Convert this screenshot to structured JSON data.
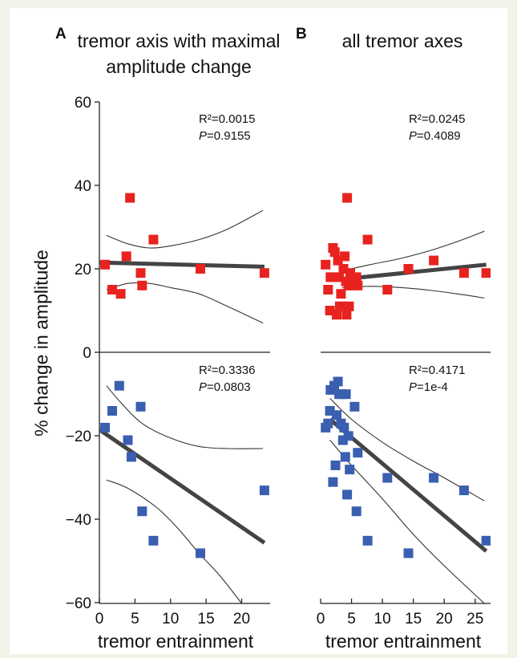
{
  "figure": {
    "ylabel": "% change in amplitude",
    "xlabel": "tremor entrainment",
    "y_ticks": [
      "60",
      "40",
      "20",
      "0",
      "−20",
      "−40",
      "−60"
    ],
    "marker_colors": {
      "increase": "#e8231f",
      "decrease": "#3a5fb0"
    },
    "line_colors": {
      "fit": "#444444",
      "ci": "#333333"
    }
  },
  "panels": [
    {
      "letter": "A",
      "title": "tremor axis with maximal amplitude change",
      "x_ticks": [
        "0",
        "5",
        "10",
        "15",
        "20"
      ],
      "top_stats": {
        "r2": "R²=0.0015",
        "p_italic": "P",
        "p_value": "=0.9155"
      },
      "bottom_stats": {
        "r2": "R²=0.3336",
        "p_italic": "P",
        "p_value": "=0.0803"
      }
    },
    {
      "letter": "B",
      "title": "all tremor axes",
      "x_ticks": [
        "0",
        "5",
        "10",
        "15",
        "20",
        "25"
      ],
      "top_stats": {
        "r2": "R²=0.0245",
        "p_italic": "P",
        "p_value": "=0.4089"
      },
      "bottom_stats": {
        "r2": "R²=0.4171",
        "p_italic": "P",
        "p_value": "=1e-4"
      }
    }
  ],
  "chart_data": [
    {
      "type": "scatter",
      "panel": "A-top",
      "xlim": [
        0,
        24
      ],
      "ylim": [
        0,
        60
      ],
      "points": [
        [
          0.8,
          21
        ],
        [
          1.8,
          15
        ],
        [
          3.0,
          14
        ],
        [
          3.8,
          23
        ],
        [
          4.3,
          37
        ],
        [
          5.8,
          19
        ],
        [
          6.0,
          16
        ],
        [
          7.6,
          27
        ],
        [
          14.2,
          20
        ],
        [
          23.2,
          19
        ]
      ],
      "fit": [
        [
          0,
          21.5
        ],
        [
          23.2,
          20.5
        ]
      ],
      "ci_upper": [
        [
          1,
          28
        ],
        [
          4,
          26
        ],
        [
          7,
          25
        ],
        [
          10,
          25.5
        ],
        [
          14,
          27
        ],
        [
          18,
          29.5
        ],
        [
          23,
          34
        ]
      ],
      "ci_lower": [
        [
          1,
          15
        ],
        [
          4,
          16.5
        ],
        [
          7,
          16.5
        ],
        [
          10,
          15.5
        ],
        [
          14,
          14
        ],
        [
          18,
          11
        ],
        [
          23,
          7
        ]
      ]
    },
    {
      "type": "scatter",
      "panel": "A-bottom",
      "xlim": [
        0,
        24
      ],
      "ylim": [
        -60,
        0
      ],
      "points": [
        [
          0.8,
          -18
        ],
        [
          1.8,
          -14
        ],
        [
          2.8,
          -8
        ],
        [
          4.0,
          -21
        ],
        [
          4.5,
          -25
        ],
        [
          5.8,
          -13
        ],
        [
          6.0,
          -38
        ],
        [
          7.6,
          -45
        ],
        [
          14.2,
          -48
        ],
        [
          23.2,
          -33
        ]
      ],
      "fit": [
        [
          0,
          -18.5
        ],
        [
          23.2,
          -45.5
        ]
      ],
      "ci_upper": [
        [
          1,
          -8
        ],
        [
          3,
          -12
        ],
        [
          6,
          -17
        ],
        [
          10,
          -20.5
        ],
        [
          14,
          -22.5
        ],
        [
          18,
          -23
        ],
        [
          23,
          -23
        ]
      ],
      "ci_lower": [
        [
          1,
          -30.5
        ],
        [
          4,
          -32.5
        ],
        [
          8,
          -37
        ],
        [
          11,
          -42
        ],
        [
          14,
          -48
        ],
        [
          17,
          -53.5
        ],
        [
          20,
          -60
        ]
      ]
    },
    {
      "type": "scatter",
      "panel": "B-top",
      "xlim": [
        0,
        27.5
      ],
      "ylim": [
        0,
        60
      ],
      "points": [
        [
          0.8,
          21
        ],
        [
          1.2,
          15
        ],
        [
          1.5,
          10
        ],
        [
          1.6,
          18
        ],
        [
          2.0,
          25
        ],
        [
          2.3,
          24
        ],
        [
          2.6,
          9
        ],
        [
          2.8,
          22
        ],
        [
          3.0,
          18
        ],
        [
          3.1,
          11
        ],
        [
          3.3,
          14
        ],
        [
          3.5,
          11
        ],
        [
          3.7,
          20
        ],
        [
          3.9,
          23
        ],
        [
          4.1,
          17
        ],
        [
          4.2,
          9
        ],
        [
          4.3,
          37
        ],
        [
          4.5,
          16
        ],
        [
          4.6,
          11
        ],
        [
          4.8,
          19
        ],
        [
          5.0,
          17
        ],
        [
          5.3,
          16
        ],
        [
          5.8,
          18
        ],
        [
          6.0,
          16
        ],
        [
          7.6,
          27
        ],
        [
          10.8,
          15
        ],
        [
          14.2,
          20
        ],
        [
          18.3,
          22
        ],
        [
          23.2,
          19
        ],
        [
          26.8,
          19
        ]
      ],
      "fit": [
        [
          3.5,
          17.5
        ],
        [
          26.8,
          21
        ]
      ],
      "ci_upper": [
        [
          3.5,
          19.5
        ],
        [
          8,
          21
        ],
        [
          13,
          22.5
        ],
        [
          18,
          24.5
        ],
        [
          23,
          27
        ],
        [
          26.5,
          29
        ]
      ],
      "ci_lower": [
        [
          3.5,
          15.5
        ],
        [
          8,
          15.8
        ],
        [
          13,
          15.5
        ],
        [
          18,
          14.8
        ],
        [
          23,
          13.8
        ],
        [
          26.5,
          13
        ]
      ]
    },
    {
      "type": "scatter",
      "panel": "B-bottom",
      "xlim": [
        0,
        27.5
      ],
      "ylim": [
        -60,
        0
      ],
      "points": [
        [
          0.8,
          -18
        ],
        [
          1.2,
          -17
        ],
        [
          1.5,
          -14
        ],
        [
          1.6,
          -9
        ],
        [
          2.0,
          -31
        ],
        [
          2.2,
          -8
        ],
        [
          2.4,
          -27
        ],
        [
          2.6,
          -15
        ],
        [
          2.8,
          -7
        ],
        [
          3.0,
          -10
        ],
        [
          3.3,
          -17
        ],
        [
          3.4,
          -10
        ],
        [
          3.6,
          -21
        ],
        [
          3.8,
          -18
        ],
        [
          4.0,
          -25
        ],
        [
          4.1,
          -10
        ],
        [
          4.3,
          -34
        ],
        [
          4.5,
          -20
        ],
        [
          4.7,
          -28
        ],
        [
          5.5,
          -13
        ],
        [
          5.8,
          -38
        ],
        [
          6.0,
          -24
        ],
        [
          7.6,
          -45
        ],
        [
          10.8,
          -30
        ],
        [
          14.2,
          -48
        ],
        [
          18.3,
          -30
        ],
        [
          23.2,
          -33
        ],
        [
          26.8,
          -45
        ]
      ],
      "fit": [
        [
          1.5,
          -16
        ],
        [
          26.8,
          -47.5
        ]
      ],
      "ci_upper": [
        [
          1.5,
          -11
        ],
        [
          5,
          -16
        ],
        [
          10,
          -21.5
        ],
        [
          15,
          -26
        ],
        [
          20,
          -30
        ],
        [
          26.5,
          -35.5
        ]
      ],
      "ci_lower": [
        [
          1.5,
          -21
        ],
        [
          5,
          -27
        ],
        [
          10,
          -35
        ],
        [
          15,
          -43.5
        ],
        [
          20,
          -51
        ],
        [
          26.5,
          -60
        ]
      ]
    }
  ]
}
